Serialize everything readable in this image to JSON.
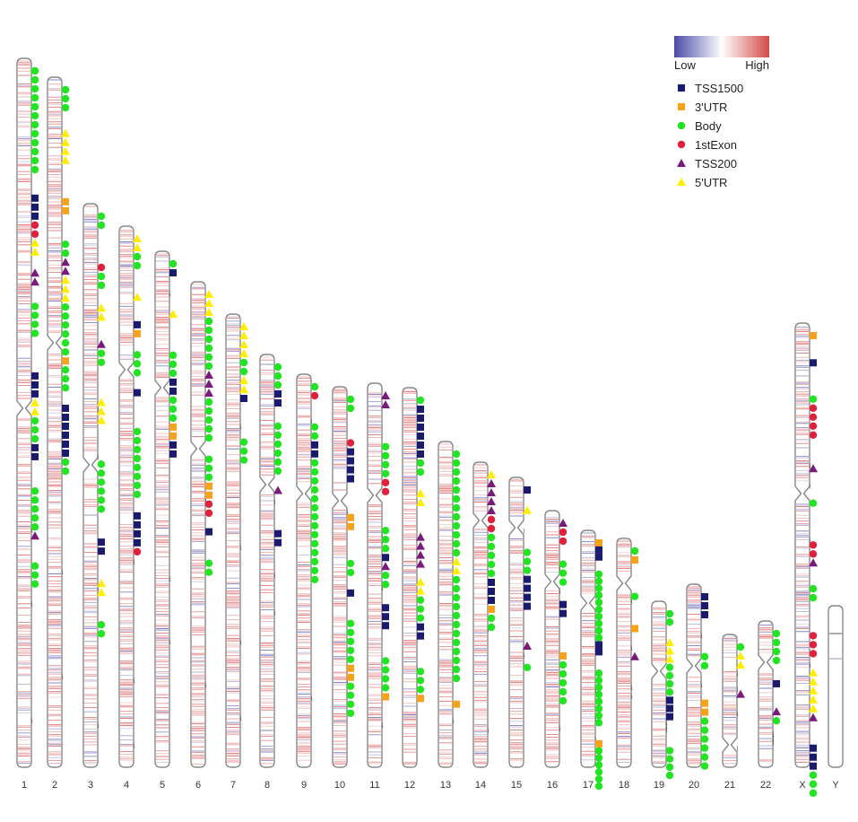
{
  "scale": {
    "low_label": "Low",
    "high_label": "High",
    "low_color": "#4a4aa8",
    "mid_color": "#ffffff",
    "high_color": "#d64a4a"
  },
  "legend": [
    {
      "label": "TSS1500",
      "shape": "square",
      "color": "#1a1a6e"
    },
    {
      "label": "3'UTR",
      "shape": "square",
      "color": "#f7a21b"
    },
    {
      "label": "Body",
      "shape": "circle",
      "color": "#22e522"
    },
    {
      "label": "1stExon",
      "shape": "circle",
      "color": "#e0203c"
    },
    {
      "label": "TSS200",
      "shape": "triangle",
      "color": "#7a1a7a"
    },
    {
      "label": "5'UTR",
      "shape": "triangle",
      "color": "#ffee00"
    }
  ],
  "chromosomes": [
    {
      "name": "1",
      "markers": [
        [
          "Body",
          12
        ],
        [
          "TSS1500",
          3
        ],
        [
          "1stExon",
          2
        ],
        [
          "5'UTR",
          2
        ],
        [
          "TSS200",
          2
        ],
        [
          "Body",
          4
        ],
        [
          "TSS1500",
          3
        ],
        [
          "5'UTR",
          2
        ],
        [
          "Body",
          3
        ],
        [
          "TSS1500",
          2
        ],
        [
          "Body",
          5
        ],
        [
          "TSS200",
          1
        ],
        [
          "Body",
          3
        ]
      ]
    },
    {
      "name": "2",
      "markers": [
        [
          "Body",
          3
        ],
        [
          "5'UTR",
          4
        ],
        [
          "3'UTR",
          2
        ],
        [
          "Body",
          2
        ],
        [
          "TSS200",
          2
        ],
        [
          "5'UTR",
          3
        ],
        [
          "Body",
          6
        ],
        [
          "3'UTR",
          1
        ],
        [
          "Body",
          3
        ],
        [
          "TSS1500",
          6
        ],
        [
          "Body",
          2
        ]
      ]
    },
    {
      "name": "3",
      "markers": [
        [
          "Body",
          2
        ],
        [
          "1stExon",
          1
        ],
        [
          "Body",
          2
        ],
        [
          "5'UTR",
          2
        ],
        [
          "TSS200",
          1
        ],
        [
          "Body",
          2
        ],
        [
          "5'UTR",
          3
        ],
        [
          "Body",
          6
        ],
        [
          "TSS1500",
          2
        ],
        [
          "5'UTR",
          2
        ],
        [
          "Body",
          2
        ]
      ]
    },
    {
      "name": "4",
      "markers": [
        [
          "5'UTR",
          2
        ],
        [
          "Body",
          2
        ],
        [
          "5'UTR",
          1
        ],
        [
          "TSS1500",
          1
        ],
        [
          "3'UTR",
          1
        ],
        [
          "Body",
          3
        ],
        [
          "TSS1500",
          1
        ],
        [
          "Body",
          8
        ],
        [
          "TSS1500",
          4
        ],
        [
          "1stExon",
          1
        ]
      ]
    },
    {
      "name": "5",
      "markers": [
        [
          "Body",
          1
        ],
        [
          "TSS1500",
          1
        ],
        [
          "5'UTR",
          1
        ],
        [
          "Body",
          3
        ],
        [
          "TSS1500",
          2
        ],
        [
          "Body",
          3
        ],
        [
          "3'UTR",
          2
        ],
        [
          "TSS1500",
          2
        ]
      ]
    },
    {
      "name": "6",
      "markers": [
        [
          "5'UTR",
          3
        ],
        [
          "Body",
          6
        ],
        [
          "TSS200",
          3
        ],
        [
          "Body",
          5
        ],
        [
          "Body",
          3
        ],
        [
          "3'UTR",
          2
        ],
        [
          "1stExon",
          2
        ],
        [
          "TSS1500",
          1
        ],
        [
          "Body",
          2
        ]
      ]
    },
    {
      "name": "7",
      "markers": [
        [
          "5'UTR",
          4
        ],
        [
          "Body",
          2
        ],
        [
          "5'UTR",
          2
        ],
        [
          "TSS1500",
          1
        ],
        [
          "Body",
          3
        ]
      ]
    },
    {
      "name": "8",
      "markers": [
        [
          "Body",
          3
        ],
        [
          "TSS1500",
          2
        ],
        [
          "Body",
          6
        ],
        [
          "TSS200",
          1
        ],
        [
          "TSS1500",
          2
        ]
      ]
    },
    {
      "name": "9",
      "markers": [
        [
          "Body",
          1
        ],
        [
          "1stExon",
          1
        ],
        [
          "Body",
          2
        ],
        [
          "TSS1500",
          2
        ],
        [
          "Body",
          6
        ],
        [
          "Body",
          8
        ]
      ]
    },
    {
      "name": "10",
      "markers": [
        [
          "Body",
          2
        ],
        [
          "1stExon",
          1
        ],
        [
          "TSS1500",
          4
        ],
        [
          "3'UTR",
          2
        ],
        [
          "Body",
          2
        ],
        [
          "TSS1500",
          1
        ],
        [
          "Body",
          5
        ],
        [
          "3'UTR",
          2
        ],
        [
          "Body",
          4
        ]
      ]
    },
    {
      "name": "11",
      "markers": [
        [
          "TSS200",
          2
        ],
        [
          "Body",
          4
        ],
        [
          "1stExon",
          2
        ],
        [
          "Body",
          3
        ],
        [
          "TSS1500",
          1
        ],
        [
          "TSS200",
          1
        ],
        [
          "Body",
          2
        ],
        [
          "TSS1500",
          3
        ],
        [
          "Body",
          4
        ],
        [
          "3'UTR",
          1
        ]
      ]
    },
    {
      "name": "12",
      "markers": [
        [
          "Body",
          1
        ],
        [
          "TSS1500",
          6
        ],
        [
          "Body",
          2
        ],
        [
          "5'UTR",
          2
        ],
        [
          "TSS200",
          4
        ],
        [
          "5'UTR",
          2
        ],
        [
          "Body",
          3
        ],
        [
          "TSS1500",
          2
        ],
        [
          "Body",
          3
        ],
        [
          "3'UTR",
          1
        ]
      ]
    },
    {
      "name": "13",
      "markers": [
        [
          "Body",
          8
        ],
        [
          "Body",
          4
        ],
        [
          "5'UTR",
          2
        ],
        [
          "Body",
          12
        ],
        [
          "3'UTR",
          1
        ]
      ]
    },
    {
      "name": "14",
      "markers": [
        [
          "5'UTR",
          1
        ],
        [
          "TSS200",
          4
        ],
        [
          "1stExon",
          2
        ],
        [
          "Body",
          5
        ],
        [
          "TSS1500",
          3
        ],
        [
          "3'UTR",
          1
        ],
        [
          "Body",
          2
        ]
      ]
    },
    {
      "name": "15",
      "markers": [
        [
          "TSS1500",
          1
        ],
        [
          "5'UTR",
          1
        ],
        [
          "Body",
          3
        ],
        [
          "TSS1500",
          4
        ],
        [
          "TSS200",
          1
        ],
        [
          "Body",
          1
        ]
      ]
    },
    {
      "name": "16",
      "markers": [
        [
          "TSS200",
          1
        ],
        [
          "1stExon",
          2
        ],
        [
          "Body",
          3
        ],
        [
          "TSS1500",
          2
        ],
        [
          "3'UTR",
          1
        ],
        [
          "Body",
          5
        ]
      ]
    },
    {
      "name": "17",
      "markers": [
        [
          "3'UTR",
          1
        ],
        [
          "TSS1500",
          2
        ],
        [
          "Body",
          10
        ],
        [
          "TSS1500",
          2
        ],
        [
          "Body",
          8
        ],
        [
          "3'UTR",
          1
        ],
        [
          "Body",
          6
        ],
        [
          "TSS1500",
          1
        ]
      ]
    },
    {
      "name": "18",
      "markers": [
        [
          "Body",
          1
        ],
        [
          "3'UTR",
          1
        ],
        [
          "Body",
          1
        ],
        [
          "3'UTR",
          1
        ],
        [
          "TSS200",
          1
        ]
      ]
    },
    {
      "name": "19",
      "markers": [
        [
          "Body",
          2
        ],
        [
          "5'UTR",
          3
        ],
        [
          "Body",
          4
        ],
        [
          "TSS1500",
          3
        ],
        [
          "Body",
          4
        ],
        [
          "TSS200",
          2
        ]
      ]
    },
    {
      "name": "20",
      "markers": [
        [
          "TSS1500",
          3
        ],
        [
          "Body",
          2
        ],
        [
          "3'UTR",
          2
        ],
        [
          "Body",
          6
        ]
      ]
    },
    {
      "name": "21",
      "markers": [
        [
          "Body",
          1
        ],
        [
          "5'UTR",
          2
        ],
        [
          "TSS200",
          1
        ]
      ]
    },
    {
      "name": "22",
      "markers": [
        [
          "Body",
          4
        ],
        [
          "TSS1500",
          1
        ],
        [
          "TSS200",
          1
        ],
        [
          "Body",
          1
        ]
      ]
    },
    {
      "name": "X",
      "markers": [
        [
          "3'UTR",
          1
        ],
        [
          "TSS1500",
          1
        ],
        [
          "Body",
          1
        ],
        [
          "1stExon",
          4
        ],
        [
          "TSS200",
          1
        ],
        [
          "Body",
          1
        ],
        [
          "1stExon",
          2
        ],
        [
          "TSS200",
          1
        ],
        [
          "Body",
          2
        ],
        [
          "1stExon",
          3
        ],
        [
          "5'UTR",
          5
        ],
        [
          "TSS200",
          1
        ],
        [
          "TSS1500",
          3
        ],
        [
          "Body",
          4
        ],
        [
          "TSS200",
          1
        ]
      ]
    },
    {
      "name": "Y",
      "markers": []
    }
  ]
}
